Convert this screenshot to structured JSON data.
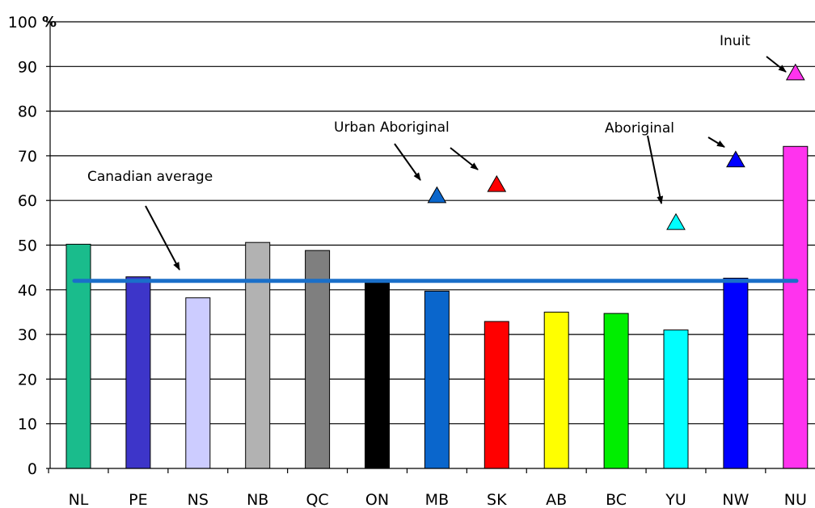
{
  "chart_data": {
    "type": "bar",
    "title": "",
    "xlabel": "",
    "ylabel": "",
    "y_unit": "%",
    "ylim": [
      0,
      100
    ],
    "yticks": [
      0,
      10,
      20,
      30,
      40,
      50,
      60,
      70,
      80,
      90,
      100
    ],
    "ytick_labels": [
      "0",
      "10",
      "20",
      "30",
      "40",
      "50",
      "60",
      "70",
      "80",
      "90",
      "100"
    ],
    "grid": true,
    "categories": [
      "NL",
      "PE",
      "NS",
      "NB",
      "QC",
      "ON",
      "MB",
      "SK",
      "AB",
      "BC",
      "YU",
      "NW",
      "NU"
    ],
    "values": [
      50.2,
      42.9,
      38.2,
      50.6,
      48.8,
      42.1,
      39.7,
      32.9,
      35.0,
      34.7,
      31.0,
      42.6,
      72.1
    ],
    "bar_colors": [
      "#1abc8c",
      "#3d35c9",
      "#ccccff",
      "#b2b2b2",
      "#7f7f7f",
      "#000000",
      "#0a66cc",
      "#ff0000",
      "#ffff00",
      "#00ee00",
      "#00ffff",
      "#0000ff",
      "#ff33ee"
    ],
    "reference_line": {
      "label": "Canadian average",
      "value": 42,
      "color": "#1a6fc9"
    },
    "markers": [
      {
        "category": "MB",
        "value": 61,
        "color": "#0a66cc"
      },
      {
        "category": "SK",
        "value": 63.5,
        "color": "#ff0000"
      },
      {
        "category": "YU",
        "value": 55,
        "color": "#00ffff"
      },
      {
        "category": "NW",
        "value": 69,
        "color": "#0000ff"
      },
      {
        "category": "NU",
        "value": 88.5,
        "color": "#ff33ee"
      }
    ],
    "annotations": [
      {
        "text": "Canadian average",
        "points_to": "reference_line"
      },
      {
        "text": "Urban Aboriginal",
        "points_to": [
          "MB",
          "SK"
        ]
      },
      {
        "text": "Aboriginal",
        "points_to": [
          "YU",
          "NW"
        ]
      },
      {
        "text": "Inuit",
        "points_to": [
          "NU"
        ]
      }
    ]
  }
}
